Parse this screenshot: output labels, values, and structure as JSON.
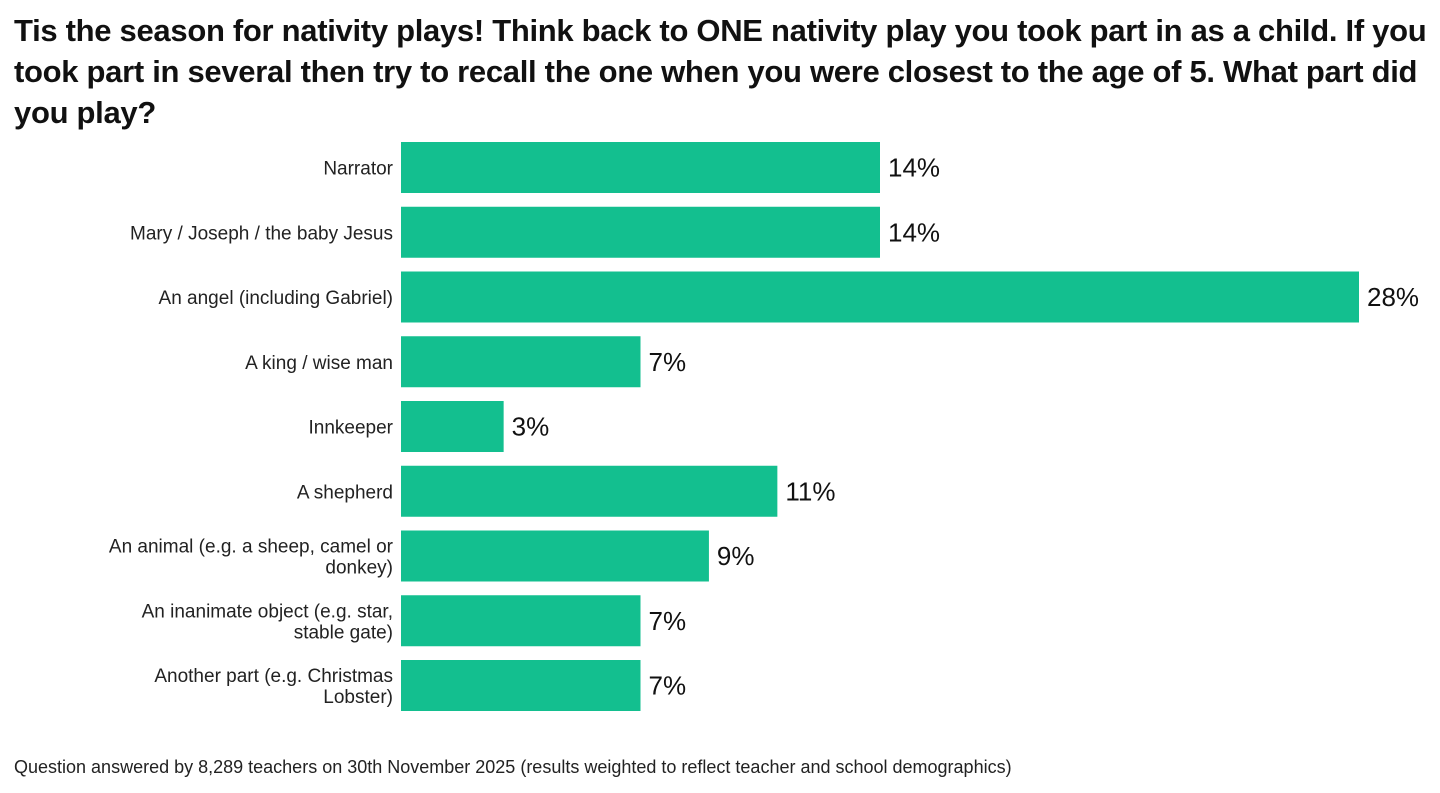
{
  "title": "Tis the season for nativity plays! Think back to ONE nativity play you took part in as a child. If you took part in several then try to recall the one when you were closest to the age of 5. What part did you play?",
  "footnote": "Question answered by 8,289 teachers on 30th November 2025 (results weighted to reflect teacher and school demographics)",
  "colors": {
    "bar": "#13bf8f"
  },
  "chart_data": {
    "type": "bar",
    "orientation": "horizontal",
    "categories": [
      [
        "Narrator"
      ],
      [
        "Mary / Joseph / the baby Jesus"
      ],
      [
        "An angel (including Gabriel)"
      ],
      [
        "A king / wise man"
      ],
      [
        "Innkeeper"
      ],
      [
        "A shepherd"
      ],
      [
        "An animal (e.g. a sheep, camel or",
        "donkey)"
      ],
      [
        "An inanimate object (e.g. star,",
        "stable gate)"
      ],
      [
        "Another part (e.g. Christmas",
        "Lobster)"
      ]
    ],
    "values": [
      14,
      14,
      28,
      7,
      3,
      11,
      9,
      7,
      7
    ],
    "value_labels": [
      "14%",
      "14%",
      "28%",
      "7%",
      "3%",
      "11%",
      "9%",
      "7%",
      "7%"
    ],
    "unit": "%",
    "xlim": [
      0,
      28
    ],
    "grid": false,
    "legend": false
  }
}
